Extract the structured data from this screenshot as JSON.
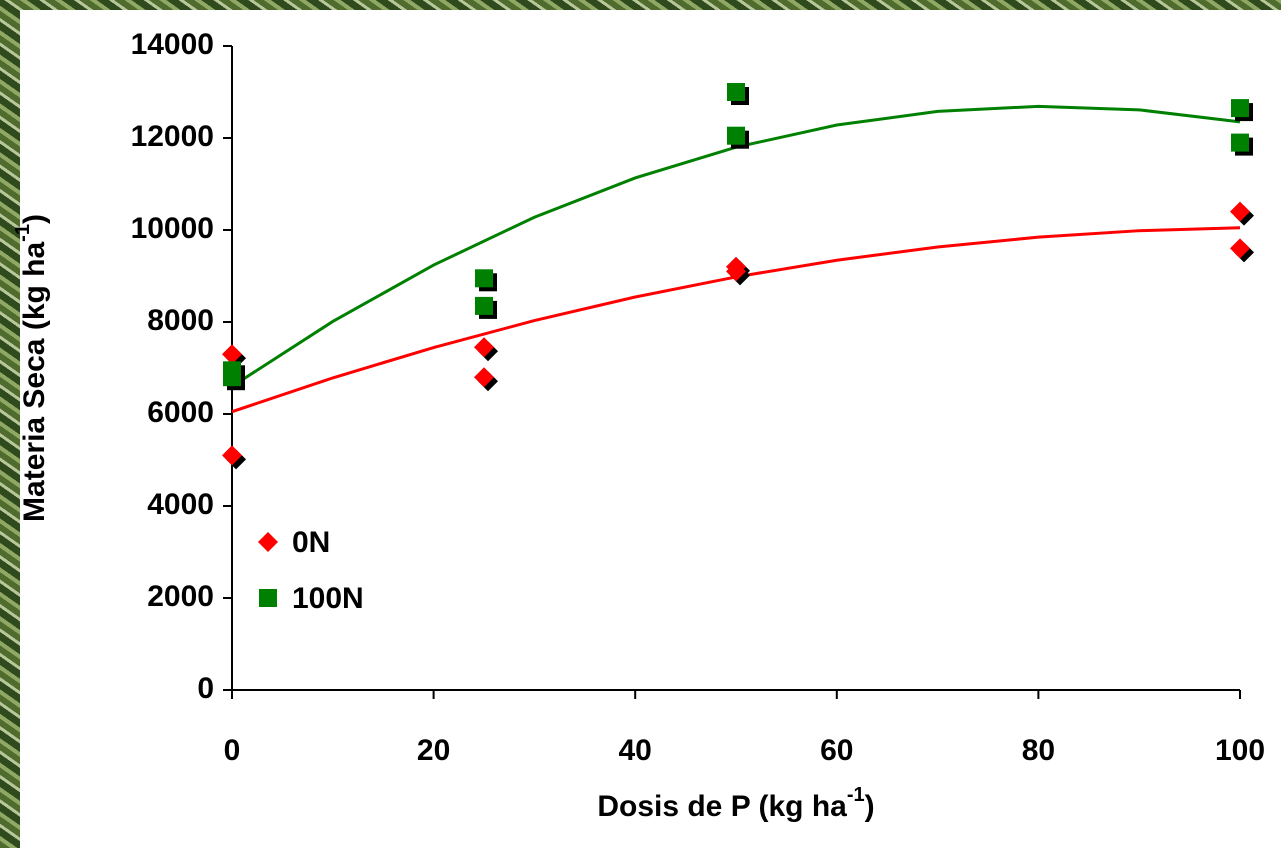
{
  "chart_data": {
    "type": "scatter",
    "x_label": {
      "text": "Dosis de P (kg ha",
      "superscript": "-1",
      "end": ")"
    },
    "y_label": {
      "text": "Materia Seca (kg ha",
      "superscript": "-1",
      "end": ")"
    },
    "xlim": [
      0,
      100
    ],
    "xticks": [
      0,
      20,
      40,
      60,
      80,
      100
    ],
    "ylim": [
      0,
      14000
    ],
    "yticks": [
      0,
      2000,
      4000,
      6000,
      8000,
      10000,
      12000,
      14000
    ],
    "legend": "lower-left",
    "series": [
      {
        "name": "0N",
        "color": "#ff0000",
        "marker": "diamond",
        "x": [
          0,
          0,
          25,
          25,
          50,
          50,
          100,
          100
        ],
        "values": [
          7300,
          5100,
          7450,
          6800,
          9200,
          9100,
          10400,
          9600
        ],
        "fit": {
          "x": [
            0,
            10,
            20,
            30,
            40,
            50,
            60,
            70,
            80,
            90,
            100
          ],
          "values": [
            6050,
            6785,
            7445,
            8031,
            8543,
            8980,
            9343,
            9631,
            9845,
            9985,
            10050
          ]
        }
      },
      {
        "name": "100N",
        "color": "#008000",
        "marker": "square",
        "x": [
          0,
          0,
          25,
          25,
          50,
          50,
          100,
          100
        ],
        "values": [
          6950,
          6800,
          8950,
          8350,
          13000,
          12050,
          12650,
          11900
        ],
        "fit": {
          "x": [
            0,
            10,
            20,
            30,
            40,
            50,
            60,
            70,
            80,
            90,
            100
          ],
          "values": [
            6600,
            8012,
            9238,
            10278,
            11132,
            11800,
            12282,
            12578,
            12688,
            12612,
            12350
          ]
        }
      }
    ]
  }
}
